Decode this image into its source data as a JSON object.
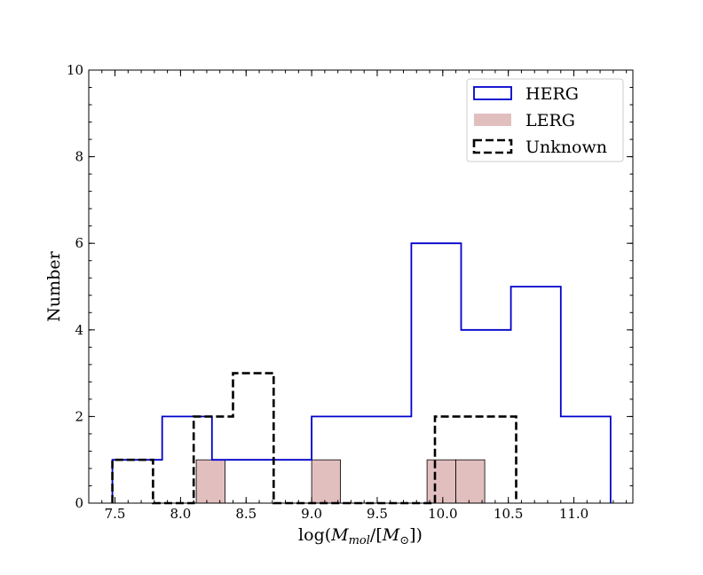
{
  "chart_data": {
    "type": "histogram",
    "xlabel": "log(M_mol/[M⊙])",
    "ylabel": "Number",
    "xlim": [
      7.3,
      11.45
    ],
    "ylim": [
      0,
      10
    ],
    "xticks": [
      7.5,
      8.0,
      8.5,
      9.0,
      9.5,
      10.0,
      10.5,
      11.0
    ],
    "xtick_labels": [
      "7.5",
      "8.0",
      "8.5",
      "9.0",
      "9.5",
      "10.0",
      "10.5",
      "11.0"
    ],
    "yticks": [
      0,
      2,
      4,
      6,
      8,
      10
    ],
    "ytick_labels": [
      "0",
      "2",
      "4",
      "6",
      "8",
      "10"
    ],
    "legend_position": "top-right",
    "series": [
      {
        "name": "HERG",
        "style": "step",
        "color": "#0000cc",
        "edges": [
          7.48,
          7.86,
          8.24,
          8.62,
          9.0,
          9.38,
          9.76,
          10.14,
          10.52,
          10.9,
          11.28
        ],
        "counts": [
          1,
          2,
          1,
          1,
          2,
          2,
          6,
          4,
          5,
          2
        ]
      },
      {
        "name": "LERG",
        "style": "filled",
        "color": "#e2bfbf",
        "edges": [
          8.12,
          8.34,
          8.56,
          8.78,
          9.0,
          9.22,
          9.44,
          9.66,
          9.88,
          10.1,
          10.32
        ],
        "counts": [
          1,
          0,
          0,
          0,
          1,
          0,
          0,
          0,
          1,
          1
        ]
      },
      {
        "name": "Unknown",
        "style": "dashed-step",
        "color": "#000000",
        "edges": [
          7.48,
          7.79,
          8.1,
          8.4,
          8.71,
          9.02,
          9.33,
          9.63,
          9.94,
          10.25,
          10.56
        ],
        "counts": [
          1,
          0,
          2,
          3,
          0,
          0,
          0,
          0,
          2,
          2
        ]
      }
    ]
  }
}
